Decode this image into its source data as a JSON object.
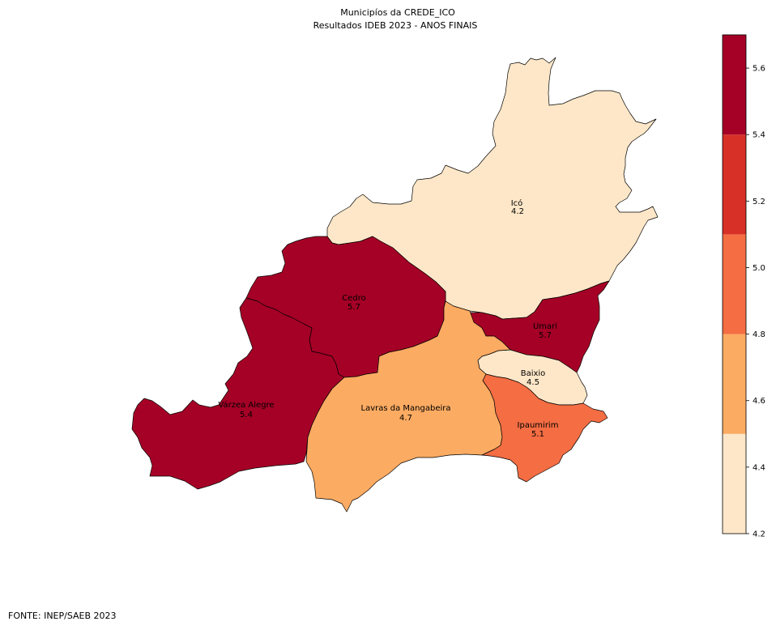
{
  "title": {
    "line1": "Municipíos da CREDE_ICO",
    "line2": "Resultados IDEB 2023 - ANOS FINAIS"
  },
  "source": "FONTE: INEP/SAEB 2023",
  "municipalities": [
    {
      "name": "Icó",
      "value": "4.2",
      "color": "#fee7c8"
    },
    {
      "name": "Cedro",
      "value": "5.7",
      "color": "#a50026"
    },
    {
      "name": "Umari",
      "value": "5.7",
      "color": "#a50026"
    },
    {
      "name": "Baixio",
      "value": "4.5",
      "color": "#fee7c8"
    },
    {
      "name": "Várzea Alegre",
      "value": "5.4",
      "color": "#a50026"
    },
    {
      "name": "Lavras da Mangabeira",
      "value": "4.7",
      "color": "#fcab62"
    },
    {
      "name": "Ipaumirim",
      "value": "5.1",
      "color": "#f46d43"
    }
  ],
  "colorbar": {
    "min": 4.2,
    "max": 5.7,
    "bins": [
      {
        "from": 4.2,
        "to": 4.5,
        "color": "#fee7c8"
      },
      {
        "from": 4.5,
        "to": 4.8,
        "color": "#fcab62"
      },
      {
        "from": 4.8,
        "to": 5.1,
        "color": "#f46d43"
      },
      {
        "from": 5.1,
        "to": 5.4,
        "color": "#d73027"
      },
      {
        "from": 5.4,
        "to": 5.7,
        "color": "#a50026"
      }
    ],
    "ticks": [
      "4.2",
      "4.4",
      "4.6",
      "4.8",
      "5.0",
      "5.2",
      "5.4",
      "5.6"
    ]
  }
}
